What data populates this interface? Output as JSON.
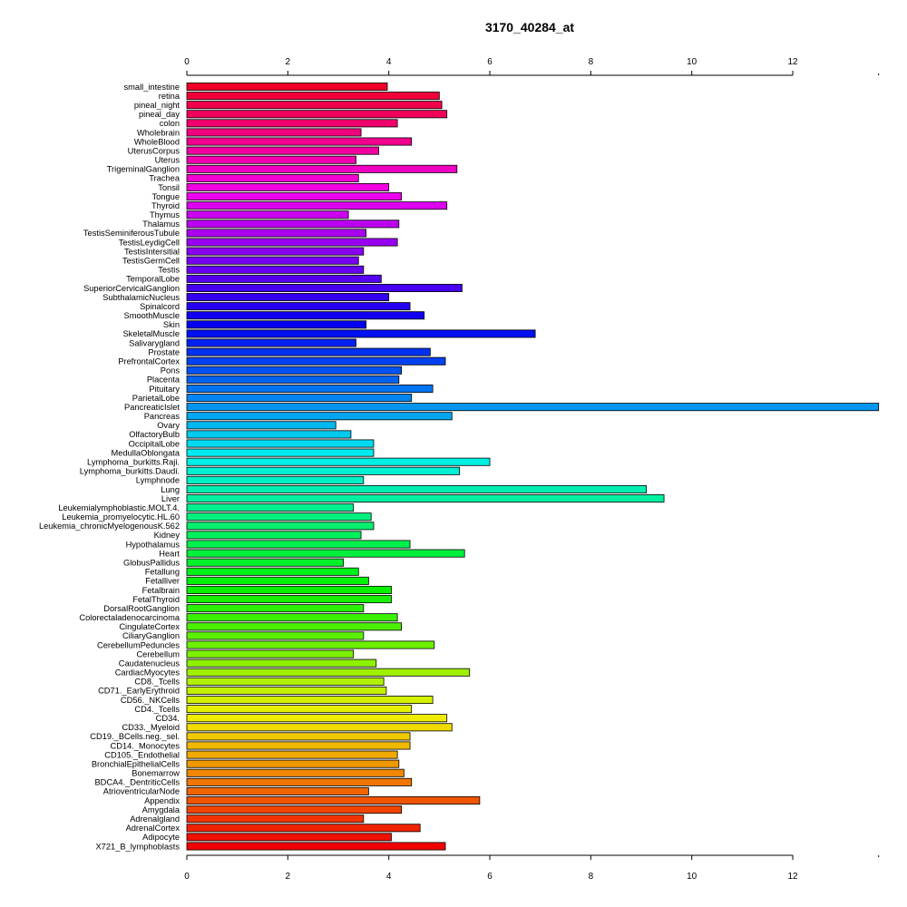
{
  "chart_data": {
    "type": "bar",
    "orientation": "horizontal",
    "title": "3170_40284_at",
    "xlabel": "",
    "ylabel": "",
    "xlim": [
      0,
      13.7
    ],
    "x_ticks": [
      0,
      2,
      4,
      6,
      8,
      10,
      12
    ],
    "axis_positions": [
      "top",
      "bottom"
    ],
    "grid": false,
    "legend": "none",
    "color_scheme": "rainbow",
    "categories": [
      "small_intestine",
      "retina",
      "pineal_night",
      "pineal_day",
      "colon",
      "Wholebrain",
      "WholeBlood",
      "UterusCorpus",
      "Uterus",
      "TrigeminalGanglion",
      "Trachea",
      "Tonsil",
      "Tongue",
      "Thyroid",
      "Thymus",
      "Thalamus",
      "TestisSeminiferousTubule",
      "TestisLeydigCell",
      "TestisIntersitial",
      "TestisGermCell",
      "Testis",
      "TemporalLobe",
      "SuperiorCervicalGanglion",
      "SubthalamicNucleus",
      "Spinalcord",
      "SmoothMuscle",
      "Skin",
      "SkeletalMuscle",
      "Salivarygland",
      "Prostate",
      "PrefrontalCortex",
      "Pons",
      "Placenta",
      "Pituitary",
      "ParietalLobe",
      "PancreaticIslet",
      "Pancreas",
      "Ovary",
      "OlfactoryBulb",
      "OccipitalLobe",
      "MedullaOblongata",
      "Lymphoma_burkitts.Raji.",
      "Lymphoma_burkitts.Daudi.",
      "Lymphnode",
      "Lung",
      "Liver",
      "Leukemialymphoblastic.MOLT.4.",
      "Leukemia_promyelocytic.HL.60",
      "Leukemia_chronicMyelogenousK.562",
      "Kidney",
      "Hypothalamus",
      "Heart",
      "GlobusPallidus",
      "Fetallung",
      "Fetalliver",
      "Fetalbrain",
      "FetalThyroid",
      "DorsalRootGanglion",
      "Colorectaladenocarcinoma",
      "CingulateCortex",
      "CiliaryGanglion",
      "CerebellumPeduncles",
      "Cerebellum",
      "Caudatenucleus",
      "CardiacMyocytes",
      "CD8._Tcells",
      "CD71._EarlyErythroid",
      "CD56._NKCells",
      "CD4._Tcells",
      "CD34.",
      "CD33._Myeloid",
      "CD19._BCells.neg._sel.",
      "CD14._Monocytes",
      "CD105._Endothelial",
      "BronchialEpithelialCells",
      "Bonemarrow",
      "BDCA4._DentriticCells",
      "AtrioventricularNode",
      "Appendix",
      "Amygdala",
      "Adrenalgland",
      "AdrenalCortex",
      "Adipocyte",
      "X721_B_lymphoblasts"
    ],
    "values": [
      3.97,
      5.0,
      5.05,
      5.15,
      4.17,
      3.45,
      4.45,
      3.8,
      3.35,
      5.35,
      3.4,
      4.0,
      4.25,
      5.15,
      3.2,
      4.2,
      3.55,
      4.17,
      3.5,
      3.4,
      3.5,
      3.85,
      5.45,
      4.0,
      4.42,
      4.7,
      3.55,
      6.9,
      3.35,
      4.82,
      5.12,
      4.25,
      4.2,
      4.87,
      4.45,
      13.7,
      5.25,
      2.95,
      3.25,
      3.7,
      3.7,
      6.0,
      5.4,
      3.5,
      9.1,
      9.45,
      3.3,
      3.65,
      3.7,
      3.45,
      4.42,
      5.5,
      3.1,
      3.4,
      3.6,
      4.05,
      4.05,
      3.5,
      4.17,
      4.25,
      3.5,
      4.9,
      3.3,
      3.75,
      5.6,
      3.9,
      3.95,
      4.87,
      4.45,
      5.15,
      5.25,
      4.42,
      4.42,
      4.17,
      4.2,
      4.3,
      4.45,
      3.6,
      5.8,
      4.25,
      3.5,
      4.62,
      4.05,
      5.12
    ]
  }
}
